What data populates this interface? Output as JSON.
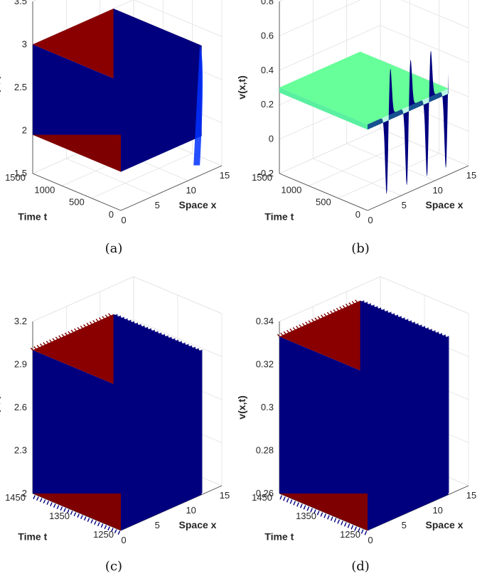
{
  "palette": {
    "jet": [
      "#00007f",
      "#0000ff",
      "#0080ff",
      "#00ffff",
      "#80ff80",
      "#ffff00",
      "#ff8000",
      "#ff0000",
      "#7f0000"
    ],
    "axis": "#4a4a4a",
    "grid": "#e2e2e2"
  },
  "chart_data": [
    {
      "id": "a",
      "type": "surface",
      "caption": "(a)",
      "xlabel": "Space x",
      "ylabel": "Time t",
      "zlabel": "u(x,t)",
      "xlim": [
        0,
        15
      ],
      "ylim": [
        0,
        1500
      ],
      "zlim": [
        1.5,
        3.5
      ],
      "xticks": [
        "0",
        "5",
        "10",
        "15"
      ],
      "yticks": [
        "0",
        "500",
        "1000",
        "1500"
      ],
      "zticks": [
        "1.5",
        "2",
        "2.5",
        "3",
        "3.5"
      ],
      "surface": {
        "x_range": [
          0,
          12
        ],
        "t_range": [
          0,
          1500
        ],
        "top": 3.0,
        "bottom": 1.95,
        "edge_dip": 1.6
      }
    },
    {
      "id": "b",
      "type": "surface",
      "caption": "(b)",
      "xlabel": "Space x",
      "ylabel": "Time t",
      "zlabel": "v(x,t)",
      "xlim": [
        0,
        15
      ],
      "ylim": [
        0,
        1500
      ],
      "zlim": [
        -0.2,
        0.8
      ],
      "xticks": [
        "0",
        "5",
        "10",
        "15"
      ],
      "yticks": [
        "0",
        "500",
        "1000",
        "1500"
      ],
      "zticks": [
        "-0.2",
        "0",
        "0.2",
        "0.4",
        "0.6",
        "0.8"
      ],
      "surface": {
        "x_range": [
          0,
          12
        ],
        "t_range": [
          0,
          1500
        ],
        "plateau": 0.3,
        "spikes_x": [
          3.2,
          6.2,
          9.2,
          12.0
        ],
        "spike_max": 0.6,
        "spike_min": -0.18
      }
    },
    {
      "id": "c",
      "type": "surface",
      "caption": "(c)",
      "xlabel": "Space x",
      "ylabel": "Time t",
      "zlabel": "u(x,t)",
      "xlim": [
        0,
        15
      ],
      "ylim": [
        1250,
        1450
      ],
      "zlim": [
        2.0,
        3.2
      ],
      "xticks": [
        "0",
        "5",
        "10",
        "15"
      ],
      "yticks": [
        "1250",
        "1350",
        "1450"
      ],
      "zticks": [
        "2",
        "2.3",
        "2.6",
        "2.9",
        "3.2"
      ],
      "surface": {
        "x_range": [
          0,
          12
        ],
        "t_range": [
          1250,
          1450
        ],
        "top": 3.0,
        "bottom": 2.0
      }
    },
    {
      "id": "d",
      "type": "surface",
      "caption": "(d)",
      "xlabel": "Space x",
      "ylabel": "Time t",
      "zlabel": "v(x,t)",
      "xlim": [
        0,
        15
      ],
      "ylim": [
        1250,
        1450
      ],
      "zlim": [
        0.26,
        0.34
      ],
      "xticks": [
        "0",
        "5",
        "10",
        "15"
      ],
      "yticks": [
        "1250",
        "1350",
        "1450"
      ],
      "zticks": [
        "0.26",
        "0.28",
        "0.3",
        "0.32",
        "0.34"
      ],
      "surface": {
        "x_range": [
          0,
          12
        ],
        "t_range": [
          1250,
          1450
        ],
        "top": 0.333,
        "bottom": 0.26
      }
    }
  ]
}
